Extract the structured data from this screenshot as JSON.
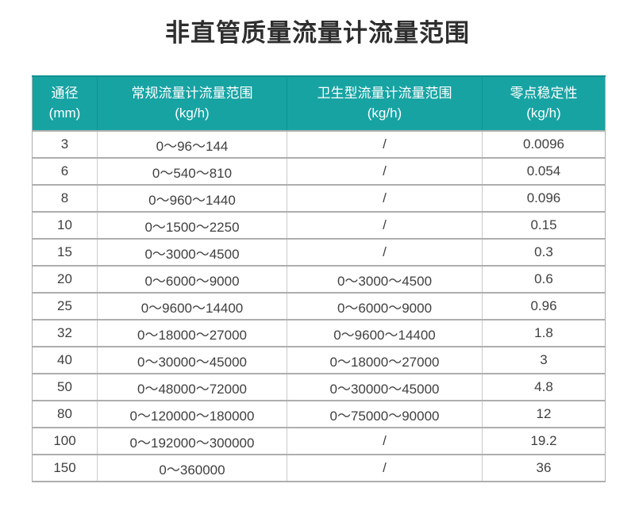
{
  "page": {
    "title": "非直管质量流量计流量范围"
  },
  "colors": {
    "header_bg": "#18a3a3",
    "header_text": "#ffffff",
    "row_border": "#aeaeae",
    "cell_text": "#3f3f3f",
    "title_text": "#2e2e2e"
  },
  "chart_data": {
    "type": "table",
    "title": "非直管质量流量计流量范围",
    "columns": [
      {
        "label": "通径",
        "unit": "(mm)"
      },
      {
        "label": "常规流量计流量范围",
        "unit": "(kg/h)"
      },
      {
        "label": "卫生型流量计流量范围",
        "unit": "(kg/h)"
      },
      {
        "label": "零点稳定性",
        "unit": "(kg/h)"
      }
    ],
    "rows": [
      [
        "3",
        "0～96～144",
        "/",
        "0.0096"
      ],
      [
        "6",
        "0～540～810",
        "/",
        "0.054"
      ],
      [
        "8",
        "0～960～1440",
        "/",
        "0.096"
      ],
      [
        "10",
        "0～1500～2250",
        "/",
        "0.15"
      ],
      [
        "15",
        "0～3000～4500",
        "/",
        "0.3"
      ],
      [
        "20",
        "0～6000～9000",
        "0～3000～4500",
        "0.6"
      ],
      [
        "25",
        "0～9600～14400",
        "0～6000～9000",
        "0.96"
      ],
      [
        "32",
        "0～18000～27000",
        "0～9600～14400",
        "1.8"
      ],
      [
        "40",
        "0～30000～45000",
        "0～18000～27000",
        "3"
      ],
      [
        "50",
        "0～48000～72000",
        "0～30000～45000",
        "4.8"
      ],
      [
        "80",
        "0～120000～180000",
        "0～75000～90000",
        "12"
      ],
      [
        "100",
        "0～192000～300000",
        "/",
        "19.2"
      ],
      [
        "150",
        "0～360000",
        "/",
        "36"
      ]
    ]
  }
}
